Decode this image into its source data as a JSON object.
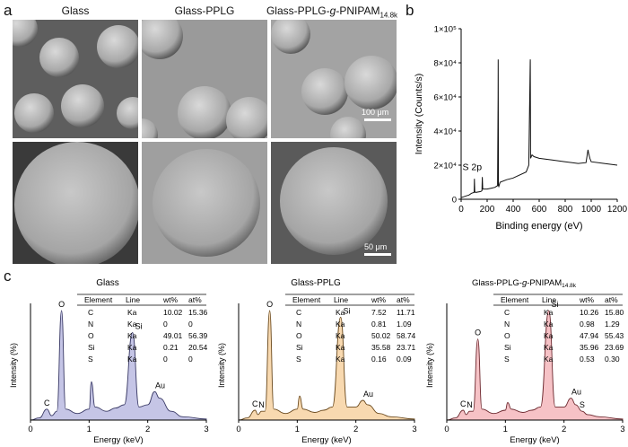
{
  "panel_labels": {
    "a": "a",
    "b": "b",
    "c": "c"
  },
  "sem": {
    "titles": [
      "Glass",
      "Glass-PPLG"
    ],
    "title3_main": "Glass-PPLG-",
    "title3_g": "g",
    "title3_tail": "-PNIPAM",
    "title3_sub": "14.8k",
    "scale_top": "100 μm",
    "scale_bottom": "50 μm"
  },
  "xps": {
    "ylabel": "Intensity (Counts/s)",
    "xlabel": "Binding energy (eV)",
    "yticks": [
      "0",
      "2×10⁴",
      "4×10⁴",
      "6×10⁴",
      "8×10⁴",
      "1×10⁵"
    ],
    "xticks": [
      "0",
      "200",
      "400",
      "600",
      "800",
      "1000",
      "1200"
    ],
    "annotation": "S 2p"
  },
  "edx": {
    "ylabel": "Intensity (%)",
    "xlabel": "Energy (keV)",
    "xticks": [
      "0",
      "1",
      "2",
      "3"
    ],
    "headers": [
      "Element",
      "Line",
      "wt%",
      "at%"
    ],
    "panels": [
      {
        "title": "Glass",
        "color": "#c5c5e6",
        "stroke": "#3a3a66",
        "rows": [
          [
            "C",
            "Ka",
            "10.02",
            "15.36"
          ],
          [
            "N",
            "Ka",
            "0",
            "0"
          ],
          [
            "O",
            "Ka",
            "49.01",
            "56.39"
          ],
          [
            "Si",
            "Ka",
            "0.21",
            "20.54"
          ],
          [
            "S",
            "Ka",
            "0",
            "0"
          ]
        ],
        "peaks": [
          {
            "label": "C",
            "e": 0.28
          },
          {
            "label": "O",
            "e": 0.53
          },
          {
            "label": "Si",
            "e": 1.74
          },
          {
            "label": "Au",
            "e": 2.12
          }
        ]
      },
      {
        "title": "Glass-PPLG",
        "color": "#f8d9b0",
        "stroke": "#6b4a1e",
        "rows": [
          [
            "C",
            "Ka",
            "7.52",
            "11.71"
          ],
          [
            "N",
            "Ka",
            "0.81",
            "1.09"
          ],
          [
            "O",
            "Ka",
            "50.02",
            "58.74"
          ],
          [
            "Si",
            "Ka",
            "35.58",
            "23.71"
          ],
          [
            "S",
            "Ka",
            "0.16",
            "0.09"
          ]
        ],
        "peaks": [
          {
            "label": "C",
            "e": 0.28
          },
          {
            "label": "N",
            "e": 0.39
          },
          {
            "label": "O",
            "e": 0.53
          },
          {
            "label": "Si",
            "e": 1.74
          },
          {
            "label": "Au",
            "e": 2.12
          }
        ]
      },
      {
        "title_main": "Glass-PPLG-",
        "title_g": "g",
        "title_tail": "-PNIPAM",
        "title_sub": "14.8k",
        "color": "#f6c2c6",
        "stroke": "#6e2a30",
        "rows": [
          [
            "C",
            "Ka",
            "10.26",
            "15.80"
          ],
          [
            "N",
            "Ka",
            "0.98",
            "1.29"
          ],
          [
            "O",
            "Ka",
            "47.94",
            "55.43"
          ],
          [
            "Si",
            "Ka",
            "35.96",
            "23.69"
          ],
          [
            "S",
            "Ka",
            "0.53",
            "0.30"
          ]
        ],
        "peaks": [
          {
            "label": "C",
            "e": 0.28
          },
          {
            "label": "N",
            "e": 0.39
          },
          {
            "label": "O",
            "e": 0.53
          },
          {
            "label": "Si",
            "e": 1.74
          },
          {
            "label": "Au",
            "e": 2.12
          },
          {
            "label": "S",
            "e": 2.31
          }
        ]
      }
    ]
  },
  "chart_data": [
    {
      "type": "line",
      "panel": "b",
      "xlabel": "Binding energy (eV)",
      "ylabel": "Intensity (Counts/s)",
      "xlim": [
        0,
        1200
      ],
      "ylim": [
        0,
        100000
      ],
      "annotations": [
        {
          "text": "S 2p",
          "x": 165,
          "y": 15000
        }
      ],
      "series": [
        {
          "x": [
            0,
            20,
            40,
            60,
            80,
            100,
            102,
            105,
            110,
            150,
            160,
            163,
            166,
            170,
            200,
            230,
            260,
            280,
            284,
            285,
            287,
            290,
            300,
            350,
            400,
            500,
            520,
            531,
            532,
            534,
            545,
            560,
            600,
            700,
            800,
            900,
            960,
            975,
            980,
            990,
            1000,
            1100,
            1200
          ],
          "y": [
            1000,
            1500,
            2000,
            2500,
            3500,
            4000,
            12000,
            4500,
            4000,
            4500,
            5000,
            13000,
            6000,
            6000,
            6000,
            6500,
            7000,
            8000,
            60000,
            82000,
            8000,
            7500,
            10000,
            11500,
            12500,
            16000,
            20000,
            80000,
            82000,
            24000,
            26000,
            25000,
            24000,
            23000,
            22000,
            21000,
            21500,
            29000,
            27000,
            24000,
            22000,
            21000,
            20000
          ]
        }
      ]
    },
    {
      "type": "area",
      "panel": "c-1",
      "title": "Glass",
      "xlabel": "Energy (keV)",
      "ylabel": "Intensity (%)",
      "xlim": [
        0,
        3
      ],
      "x": [
        0,
        0.15,
        0.28,
        0.36,
        0.45,
        0.53,
        0.6,
        0.8,
        1.0,
        1.04,
        1.1,
        1.3,
        1.45,
        1.6,
        1.74,
        1.85,
        2.0,
        2.12,
        2.2,
        2.4,
        2.6,
        3.0
      ],
      "y": [
        0,
        2,
        10,
        4,
        8,
        100,
        10,
        6,
        10,
        35,
        12,
        8,
        11,
        14,
        80,
        12,
        14,
        26,
        20,
        8,
        3,
        1
      ]
    },
    {
      "type": "area",
      "panel": "c-2",
      "title": "Glass-PPLG",
      "xlabel": "Energy (keV)",
      "ylabel": "Intensity (%)",
      "xlim": [
        0,
        3
      ],
      "x": [
        0,
        0.15,
        0.28,
        0.33,
        0.39,
        0.45,
        0.53,
        0.6,
        0.8,
        1.0,
        1.04,
        1.1,
        1.3,
        1.45,
        1.6,
        1.74,
        1.85,
        2.0,
        2.12,
        2.2,
        2.4,
        2.6,
        3.0
      ],
      "y": [
        0,
        2,
        9,
        5,
        8,
        8,
        100,
        10,
        6,
        10,
        22,
        10,
        7,
        9,
        12,
        94,
        12,
        12,
        18,
        14,
        6,
        3,
        1
      ]
    },
    {
      "type": "area",
      "panel": "c-3",
      "title": "Glass-PPLG-g-PNIPAM14.8k",
      "xlabel": "Energy (keV)",
      "ylabel": "Intensity (%)",
      "xlim": [
        0,
        3
      ],
      "x": [
        0,
        0.15,
        0.28,
        0.33,
        0.39,
        0.45,
        0.53,
        0.6,
        0.8,
        1.0,
        1.04,
        1.1,
        1.3,
        1.45,
        1.6,
        1.74,
        1.85,
        2.0,
        2.12,
        2.2,
        2.31,
        2.4,
        2.6,
        3.0
      ],
      "y": [
        0,
        2,
        9,
        5,
        8,
        8,
        74,
        10,
        6,
        9,
        16,
        10,
        7,
        9,
        12,
        100,
        12,
        12,
        20,
        14,
        8,
        5,
        3,
        1
      ]
    }
  ]
}
